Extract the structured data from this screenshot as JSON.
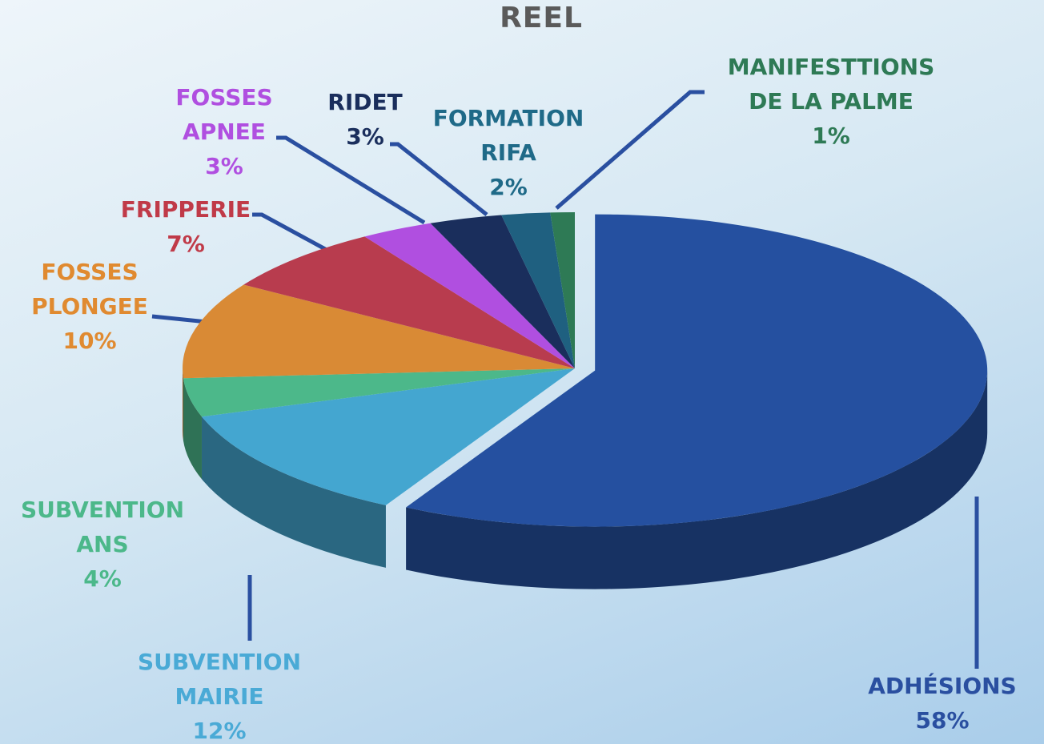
{
  "chart_data": {
    "type": "pie",
    "title": "REEL",
    "categories": [
      "ADHÉSIONS",
      "SUBVENTION\nMAIRIE",
      "SUBVENTION\nANS",
      "FOSSES\nPLONGEE",
      "FRIPPERIE",
      "FOSSES\nAPNEE",
      "RIDET",
      "FORMATION\nRIFA",
      "MANIFESTTIONS\nDE LA PALME"
    ],
    "values": [
      58,
      12,
      4,
      10,
      7,
      3,
      3,
      2,
      1
    ],
    "value_labels": [
      "58%",
      "12%",
      "4%",
      "10%",
      "7%",
      "3%",
      "3%",
      "2%",
      "1%"
    ],
    "colors": [
      "#2550a0",
      "#44a6d0",
      "#4cb88a",
      "#d98a35",
      "#b83c4e",
      "#b04fe0",
      "#1a2e5c",
      "#1f6080",
      "#2e7a55"
    ],
    "label_colors": [
      "#2a4fa0",
      "#4aaad6",
      "#4cb88a",
      "#e08a30",
      "#c03a48",
      "#b04fe0",
      "#1a2e5c",
      "#1f6a88",
      "#2e7a55"
    ]
  }
}
